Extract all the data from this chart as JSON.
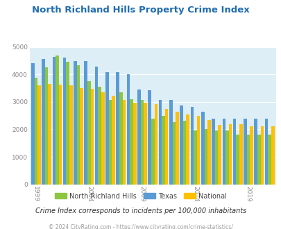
{
  "title": "North Richland Hills Property Crime Index",
  "years": [
    1999,
    2000,
    2001,
    2002,
    2003,
    2004,
    2005,
    2006,
    2007,
    2008,
    2009,
    2010,
    2011,
    2012,
    2013,
    2014,
    2015,
    2016,
    2017,
    2018,
    2019,
    2020,
    2021
  ],
  "nrh": [
    3880,
    4250,
    4680,
    4450,
    4340,
    3760,
    3540,
    3060,
    3340,
    3090,
    3060,
    2380,
    2500,
    2260,
    2310,
    1960,
    2000,
    1960,
    1960,
    1800,
    1800,
    1800,
    1800
  ],
  "texas": [
    4420,
    4560,
    4630,
    4600,
    4490,
    4480,
    4290,
    4070,
    4080,
    4000,
    3450,
    3420,
    3060,
    3060,
    2870,
    2820,
    2640,
    2400,
    2380,
    2400,
    2400,
    2380,
    2380
  ],
  "national": [
    3600,
    3650,
    3620,
    3600,
    3500,
    3480,
    3340,
    3220,
    3070,
    2970,
    2980,
    2920,
    2740,
    2650,
    2550,
    2480,
    2350,
    2160,
    2190,
    2200,
    2110,
    2100,
    2120
  ],
  "nrh_color": "#8dc63f",
  "texas_color": "#5b9bd5",
  "national_color": "#ffc000",
  "bg_color": "#ddeef6",
  "fig_bg": "#ffffff",
  "title_color": "#1f6cb0",
  "subtitle": "Crime Index corresponds to incidents per 100,000 inhabitants",
  "footer": "© 2024 CityRating.com - https://www.cityrating.com/crime-statistics/",
  "ylabel_ticks": [
    0,
    1000,
    2000,
    3000,
    4000,
    5000
  ],
  "xtick_labels": [
    "1999",
    "2004",
    "2009",
    "2014",
    "2019"
  ],
  "xtick_positions": [
    0,
    5,
    10,
    15,
    20
  ]
}
